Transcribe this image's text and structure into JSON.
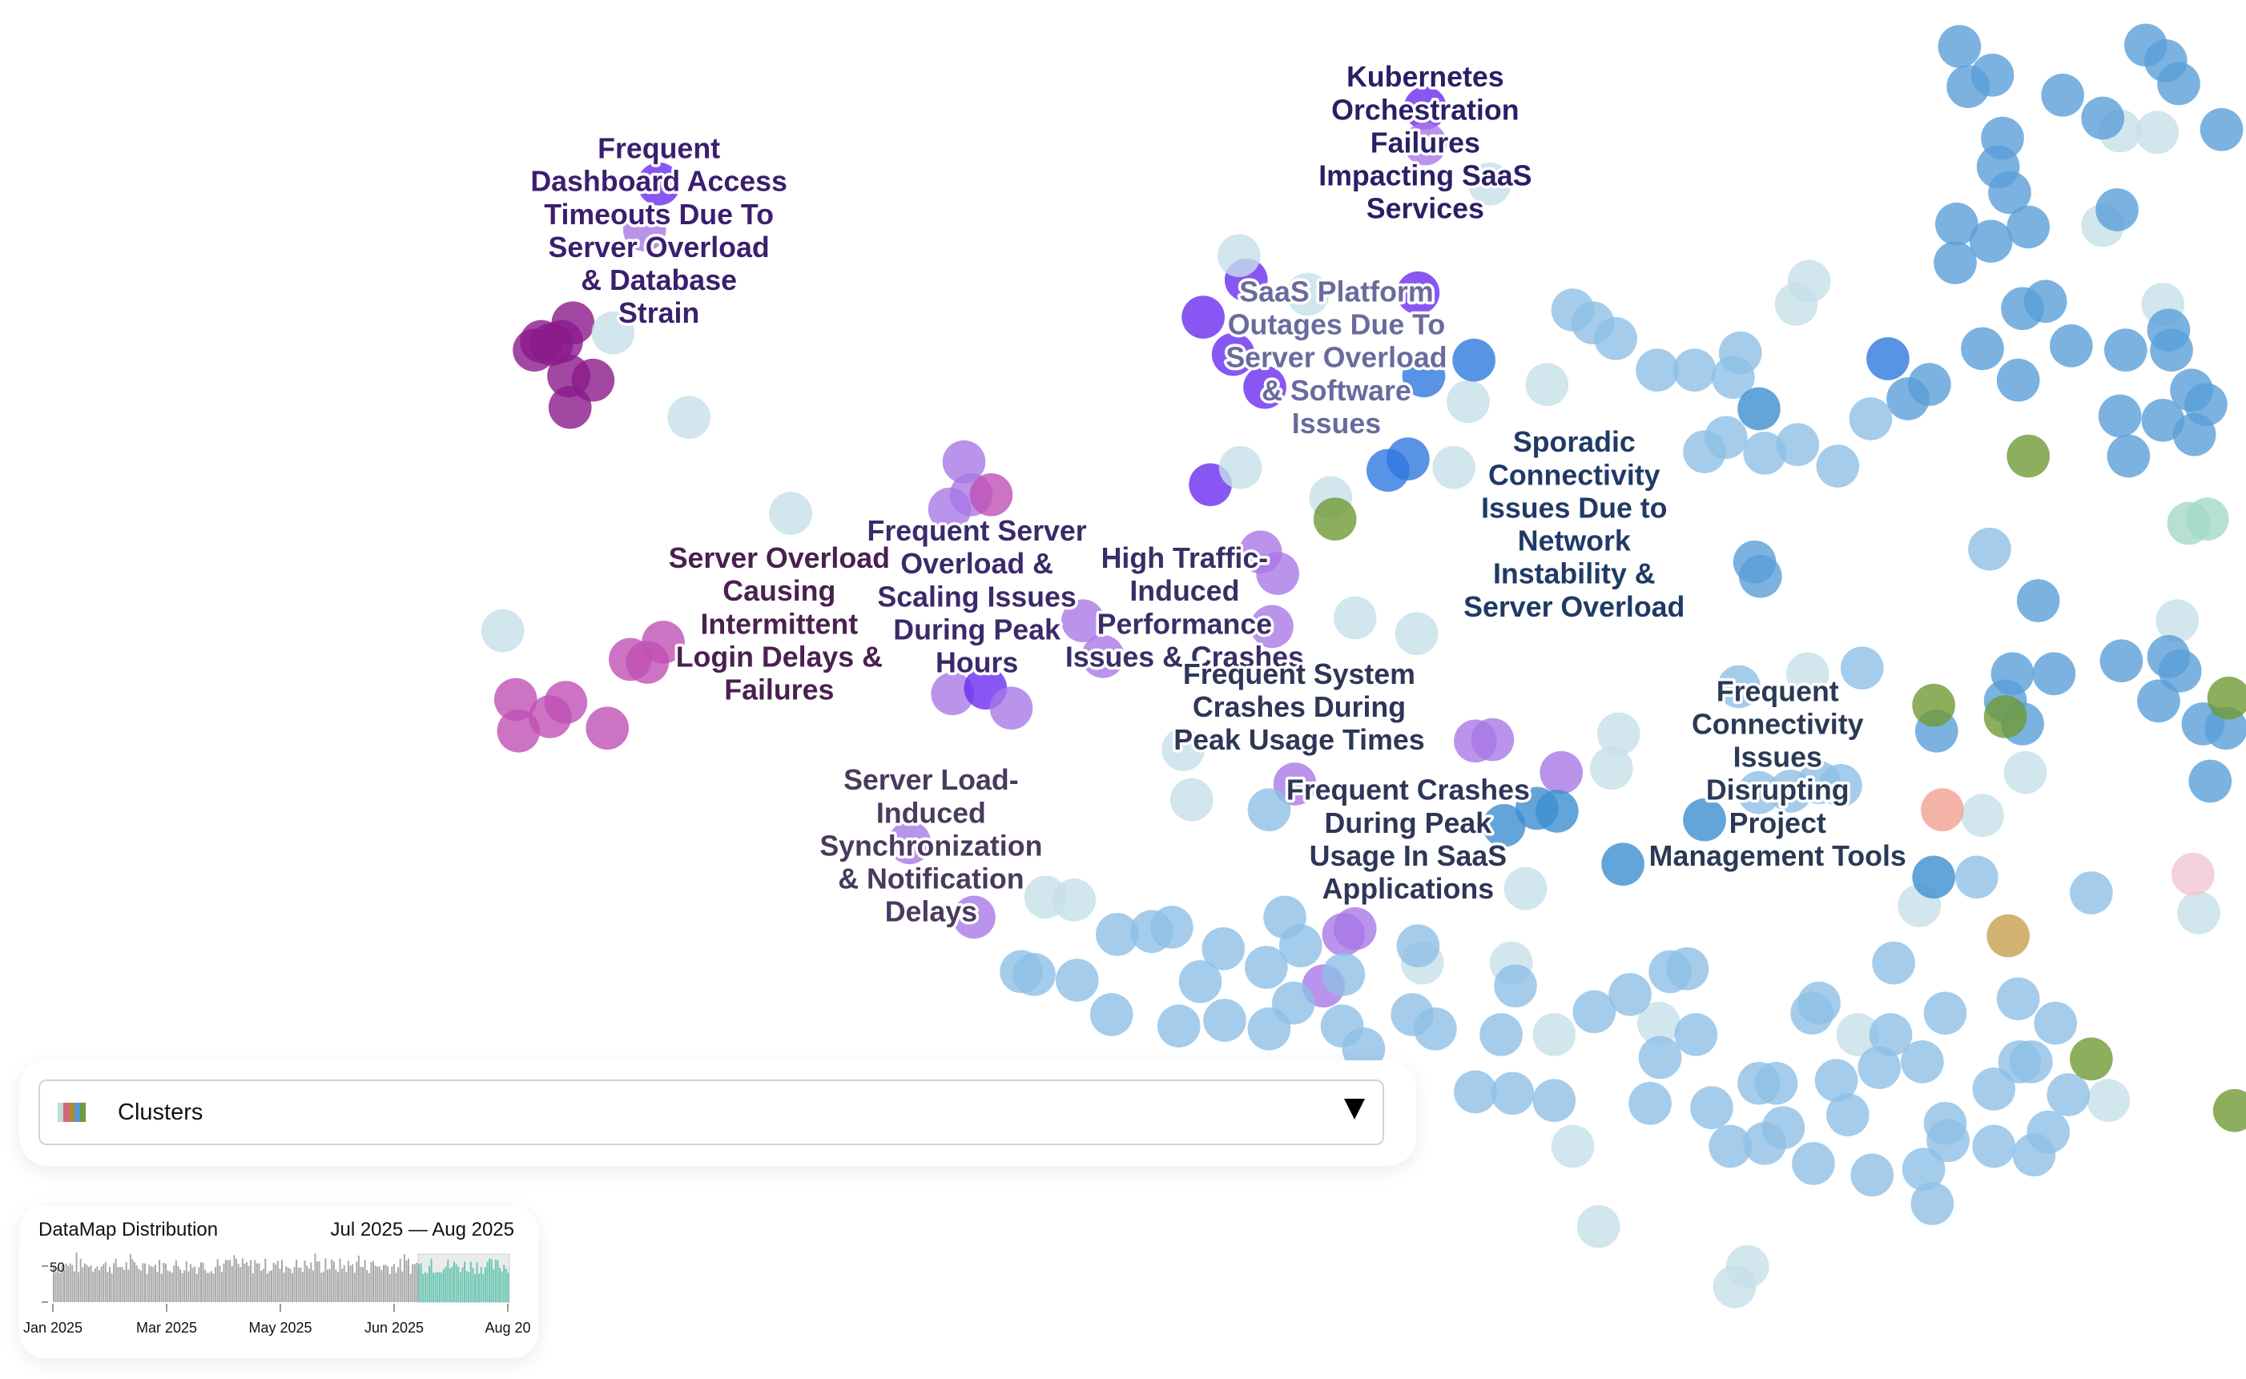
{
  "map": {
    "cluster_labels": [
      {
        "text": [
          "Frequent",
          "Dashboard Access",
          "Timeouts Due To",
          "Server Overload",
          "& Database",
          "Strain"
        ],
        "color": "#3b1e6e"
      },
      {
        "text": [
          "Kubernetes",
          "Orchestration",
          "Failures",
          "Impacting SaaS",
          "Services"
        ],
        "color": "#2a1f66"
      },
      {
        "text": [
          "SaaS Platform",
          "Outages Due To",
          "Server Overload",
          "& Software",
          "Issues"
        ],
        "color": "#6b6a9e"
      },
      {
        "text": [
          "Sporadic",
          "Connectivity",
          "Issues Due to",
          "Network",
          "Instability &",
          "Server Overload"
        ],
        "color": "#1f3a66"
      },
      {
        "text": [
          "Server Overload",
          "Causing",
          "Intermittent",
          "Login Delays &",
          "Failures"
        ],
        "color": "#4a2050"
      },
      {
        "text": [
          "Frequent Server",
          "Overload &",
          "Scaling Issues",
          "During Peak",
          "Hours"
        ],
        "color": "#3a2a6a"
      },
      {
        "text": [
          "High Traffic-",
          "Induced",
          "Performance",
          "Issues & Crashes"
        ],
        "color": "#3a2e66"
      },
      {
        "text": [
          "Frequent System",
          "Crashes During",
          "Peak Usage Times"
        ],
        "color": "#2e3658"
      },
      {
        "text": [
          "Frequent Crashes",
          "During Peak",
          "Usage In SaaS",
          "Applications"
        ],
        "color": "#2e3658"
      },
      {
        "text": [
          "Frequent",
          "Connectivity",
          "Issues",
          "Disrupting",
          "Project",
          "Management Tools"
        ],
        "color": "#2a3a55"
      },
      {
        "text": [
          "Server Load-",
          "Induced",
          "Synchronization",
          "& Notification",
          "Delays"
        ],
        "color": "#4a3a5e"
      }
    ]
  },
  "cluster_selector": {
    "label": "Clusters",
    "swatch_colors": [
      "#c2ddd8",
      "#d4667f",
      "#b08a30",
      "#5696cc",
      "#6b9b3a"
    ]
  },
  "histogram": {
    "title": "DataMap Distribution",
    "selected_range": "Jul 2025 — Aug 2025",
    "chart_data": {
      "type": "bar",
      "y_tick_labels": [
        "50"
      ],
      "x_tick_labels": [
        "Jan 2025",
        "Mar 2025",
        "May 2025",
        "Jun 2025",
        "Aug 20"
      ],
      "highlight_color": "#6cc7b3",
      "bar_color": "#a8a8a8"
    }
  }
}
